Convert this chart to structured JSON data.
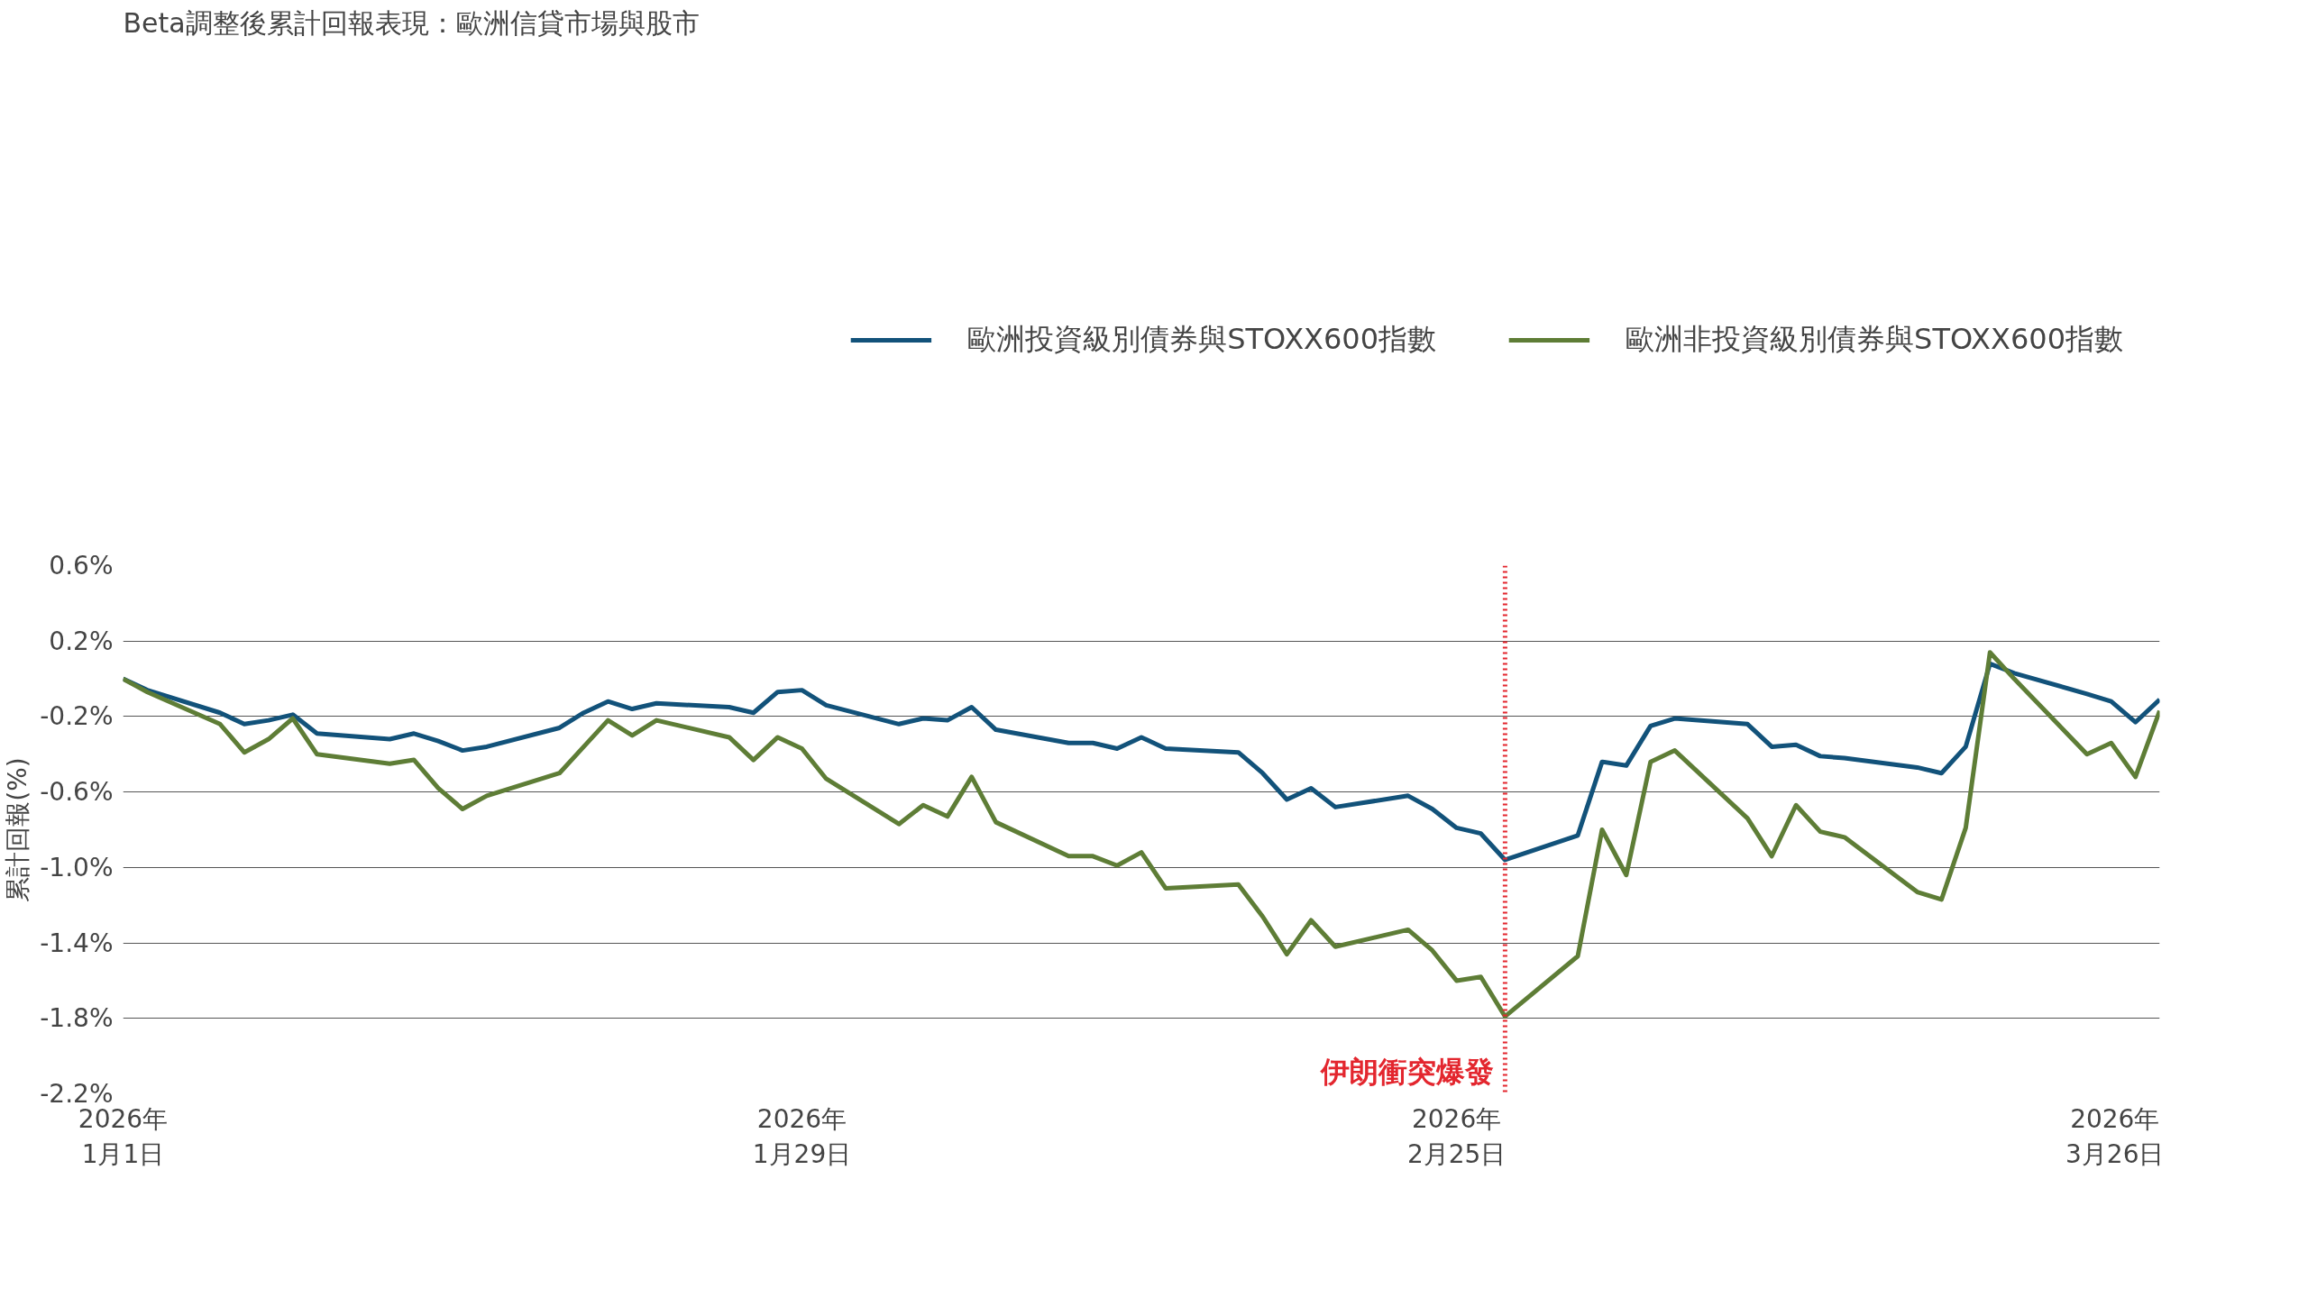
{
  "chart_data": {
    "type": "line",
    "title": "Beta調整後累計回報表現：歐洲信貸市場與股市",
    "ylabel": "累計回報(%)",
    "x": [
      "2026-01-01",
      "2026-01-02",
      "2026-01-05",
      "2026-01-06",
      "2026-01-07",
      "2026-01-08",
      "2026-01-09",
      "2026-01-12",
      "2026-01-13",
      "2026-01-14",
      "2026-01-15",
      "2026-01-16",
      "2026-01-19",
      "2026-01-20",
      "2026-01-21",
      "2026-01-22",
      "2026-01-23",
      "2026-01-26",
      "2026-01-27",
      "2026-01-28",
      "2026-01-29",
      "2026-01-30",
      "2026-02-02",
      "2026-02-03",
      "2026-02-04",
      "2026-02-05",
      "2026-02-06",
      "2026-02-09",
      "2026-02-10",
      "2026-02-11",
      "2026-02-12",
      "2026-02-13",
      "2026-02-16",
      "2026-02-17",
      "2026-02-18",
      "2026-02-19",
      "2026-02-20",
      "2026-02-23",
      "2026-02-24",
      "2026-02-25",
      "2026-02-26",
      "2026-02-27",
      "2026-03-02",
      "2026-03-03",
      "2026-03-04",
      "2026-03-05",
      "2026-03-06",
      "2026-03-09",
      "2026-03-10",
      "2026-03-11",
      "2026-03-12",
      "2026-03-13",
      "2026-03-16",
      "2026-03-17",
      "2026-03-18",
      "2026-03-19",
      "2026-03-20",
      "2026-03-23",
      "2026-03-24",
      "2026-03-25",
      "2026-03-26"
    ],
    "series": [
      {
        "name": "歐洲投資級別債券與STOXX600指數",
        "color": "#12527a",
        "values": [
          0.0,
          -0.06,
          -0.18,
          -0.24,
          -0.22,
          -0.19,
          -0.29,
          -0.32,
          -0.29,
          -0.33,
          -0.38,
          -0.36,
          -0.26,
          -0.18,
          -0.12,
          -0.16,
          -0.13,
          -0.15,
          -0.18,
          -0.07,
          -0.06,
          -0.14,
          -0.24,
          -0.21,
          -0.22,
          -0.15,
          -0.27,
          -0.34,
          -0.34,
          -0.37,
          -0.31,
          -0.37,
          -0.39,
          -0.5,
          -0.64,
          -0.58,
          -0.68,
          -0.62,
          -0.69,
          -0.79,
          -0.82,
          -0.96,
          -0.83,
          -0.44,
          -0.46,
          -0.25,
          -0.21,
          -0.24,
          -0.36,
          -0.35,
          -0.41,
          -0.42,
          -0.47,
          -0.5,
          -0.36,
          0.08,
          0.03,
          -0.08,
          -0.12,
          -0.23,
          -0.11
        ]
      },
      {
        "name": "歐洲非投資級別債券與STOXX600指數",
        "color": "#5e7d36",
        "values": [
          0.0,
          -0.07,
          -0.24,
          -0.39,
          -0.32,
          -0.21,
          -0.4,
          -0.45,
          -0.43,
          -0.58,
          -0.69,
          -0.62,
          -0.5,
          -0.36,
          -0.22,
          -0.3,
          -0.22,
          -0.31,
          -0.43,
          -0.31,
          -0.37,
          -0.53,
          -0.77,
          -0.67,
          -0.73,
          -0.52,
          -0.76,
          -0.94,
          -0.94,
          -0.99,
          -0.92,
          -1.11,
          -1.09,
          -1.26,
          -1.46,
          -1.28,
          -1.42,
          -1.33,
          -1.44,
          -1.6,
          -1.58,
          -1.79,
          -1.47,
          -0.8,
          -1.04,
          -0.44,
          -0.38,
          -0.74,
          -0.94,
          -0.67,
          -0.81,
          -0.84,
          -1.13,
          -1.17,
          -0.79,
          0.14,
          0.0,
          -0.4,
          -0.34,
          -0.52,
          -0.17
        ]
      }
    ],
    "xlim": [
      "2026-01-01",
      "2026-03-26"
    ],
    "xticks": [
      {
        "value": "2026-01-01",
        "label": "2026年\n1月1日"
      },
      {
        "value": "2026-01-29",
        "label": "2026年\n1月29日"
      },
      {
        "value": "2026-02-25",
        "label": "2026年\n2月25日"
      },
      {
        "value": "2026-03-26",
        "label": "2026年\n3月26日"
      }
    ],
    "ylim": [
      -2.2,
      0.6
    ],
    "yticks": [
      {
        "value": 0.6,
        "label": "0.6%"
      },
      {
        "value": 0.2,
        "label": "0.2%"
      },
      {
        "value": -0.2,
        "label": "-0.2%"
      },
      {
        "value": -0.6,
        "label": "-0.6%"
      },
      {
        "value": -1.0,
        "label": "-1.0%"
      },
      {
        "value": -1.4,
        "label": "-1.4%"
      },
      {
        "value": -1.8,
        "label": "-1.8%"
      },
      {
        "value": -2.2,
        "label": "-2.2%"
      }
    ],
    "ref_lines": [
      {
        "axis": "x",
        "value": "2026-02-27",
        "label": "伊朗衝突爆發",
        "color": "#e3262e",
        "line_style": "dotted"
      }
    ],
    "grid": "y",
    "legend": "top right",
    "line_style": "solid",
    "marker": "none"
  }
}
